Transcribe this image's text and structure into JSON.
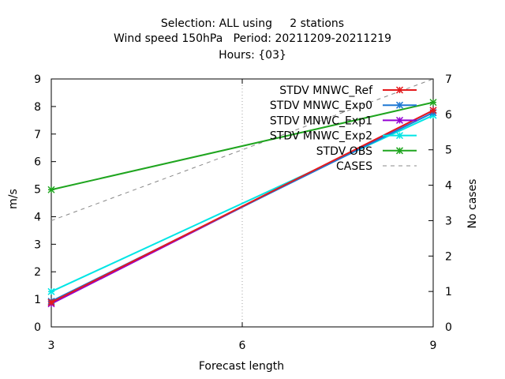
{
  "titles": [
    "Selection: ALL using     2 stations",
    "Wind speed 150hPa   Period: 20211209-20211219",
    "Hours: {03}"
  ],
  "chart_data": {
    "type": "line",
    "xlabel": "Forecast length",
    "ylabel": "m/s",
    "y2label": "No cases",
    "xlim": [
      3,
      9
    ],
    "ylim": [
      0,
      9
    ],
    "y2lim": [
      0,
      7
    ],
    "x_ticks": [
      3,
      6,
      9
    ],
    "y_ticks": [
      0,
      1,
      2,
      3,
      4,
      5,
      6,
      7,
      8,
      9
    ],
    "y2_ticks": [
      0,
      1,
      2,
      3,
      4,
      5,
      6,
      7
    ],
    "grid": "x-only dotted",
    "legend_position": "top-right",
    "x": [
      3,
      9
    ],
    "series": [
      {
        "name": "STDV MNWC_Ref",
        "axis": "y",
        "color": "#e41a1c",
        "marker": "star",
        "values": [
          0.89,
          7.86
        ]
      },
      {
        "name": "STDV MNWC_Exp0",
        "axis": "y",
        "color": "#1f78d4",
        "marker": "star",
        "values": [
          0.93,
          7.78
        ]
      },
      {
        "name": "STDV MNWC_Exp1",
        "axis": "y",
        "color": "#9400d3",
        "marker": "star",
        "values": [
          0.84,
          7.86
        ]
      },
      {
        "name": "STDV MNWC_Exp2",
        "axis": "y",
        "color": "#00e5e5",
        "marker": "star",
        "values": [
          1.28,
          7.68
        ]
      },
      {
        "name": "STDV OBS",
        "axis": "y",
        "color": "#1fa51f",
        "marker": "star",
        "values": [
          4.98,
          8.15
        ]
      },
      {
        "name": "CASES",
        "axis": "y2",
        "color": "#888888",
        "marker": "none",
        "dashed": true,
        "values": [
          3.0,
          7.0
        ]
      }
    ]
  }
}
